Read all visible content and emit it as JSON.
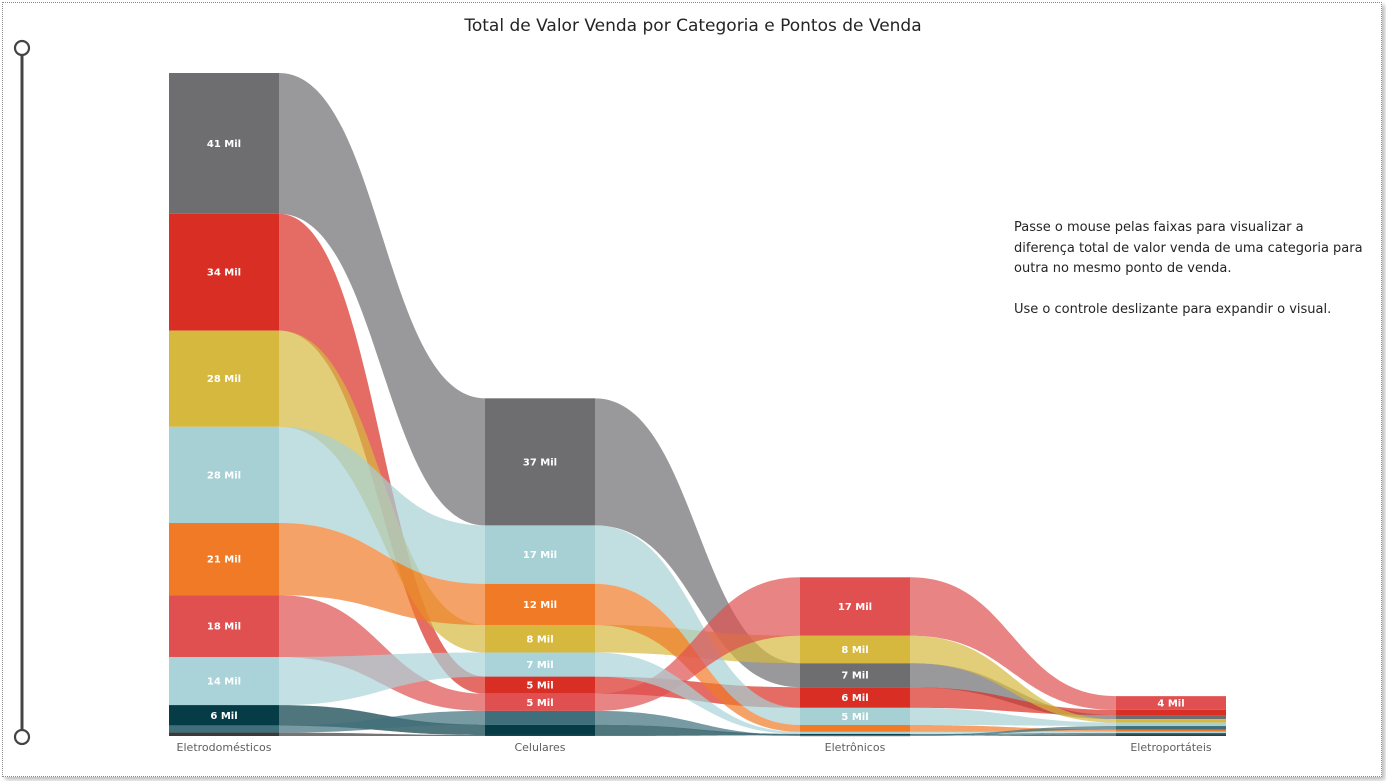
{
  "chart_data": {
    "type": "ribbon",
    "title": "Total de Valor Venda por Categoria e Pontos de Venda",
    "categories": [
      "Eletrodomésticos",
      "Celulares",
      "Eletrônicos",
      "Eletroportáteis"
    ],
    "series": [
      {
        "color": "#6e6e70",
        "values": [
          41,
          37,
          7,
          1.2
        ],
        "labels": [
          "41 Mil",
          "37 Mil",
          "7 Mil",
          ""
        ]
      },
      {
        "color": "#d92e23",
        "values": [
          34,
          5,
          6,
          1.5
        ],
        "labels": [
          "34 Mil",
          "5 Mil",
          "6 Mil",
          ""
        ]
      },
      {
        "color": "#d6b83e",
        "values": [
          28,
          8,
          8,
          1.0
        ],
        "labels": [
          "28 Mil",
          "8 Mil",
          "8 Mil",
          ""
        ]
      },
      {
        "color": "#a7d0d4",
        "values": [
          28,
          17,
          5,
          1.0
        ],
        "labels": [
          "28 Mil",
          "17 Mil",
          "5 Mil",
          ""
        ]
      },
      {
        "color": "#f07a26",
        "values": [
          21,
          12,
          2,
          0.6
        ],
        "labels": [
          "21 Mil",
          "12 Mil",
          "",
          ""
        ]
      },
      {
        "color": "#e05050",
        "values": [
          18,
          5,
          17,
          4
        ],
        "labels": [
          "18 Mil",
          "5 Mil",
          "17 Mil",
          "4 Mil"
        ]
      },
      {
        "color": "#a9d3d8",
        "values": [
          14,
          7,
          0.6,
          0.5
        ],
        "labels": [
          "14 Mil",
          "7 Mil",
          "",
          ""
        ]
      },
      {
        "color": "#063c46",
        "values": [
          6,
          3,
          0.3,
          0.4
        ],
        "labels": [
          "6 Mil",
          "",
          "",
          ""
        ]
      },
      {
        "color": "#3e6f7a",
        "values": [
          2,
          4,
          0.2,
          1.0
        ],
        "labels": [
          "",
          "",
          "",
          ""
        ]
      },
      {
        "color": "#3a3a3a",
        "values": [
          1,
          0.3,
          0.1,
          0.4
        ],
        "labels": [
          "",
          "",
          "",
          ""
        ]
      }
    ]
  },
  "note": {
    "paragraph1": "Passe o mouse pelas faixas para visualizar a diferença total de valor venda de uma categoria para outra no mesmo ponto de venda.",
    "paragraph2": "Use o controle deslizante para expandir o visual."
  }
}
